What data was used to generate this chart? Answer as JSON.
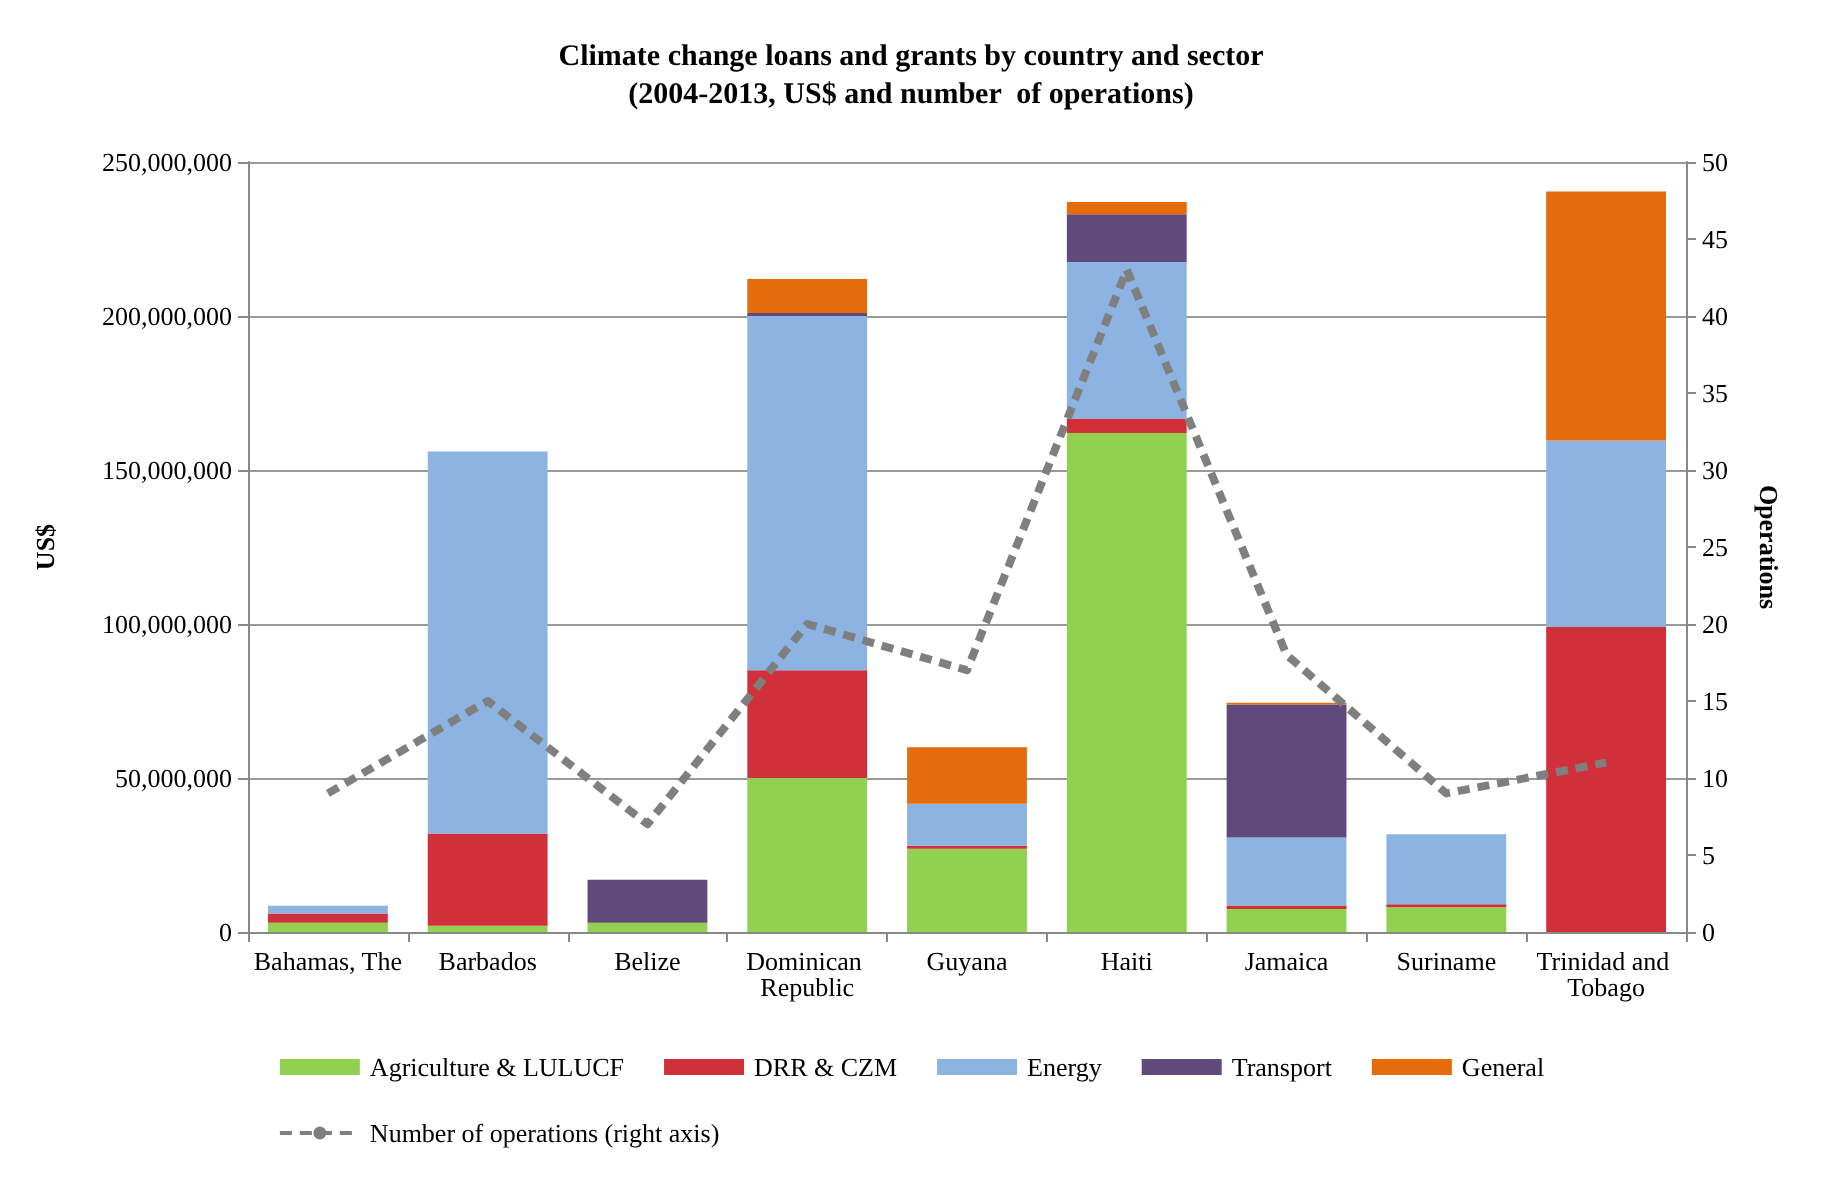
{
  "chart_data": {
    "type": "bar",
    "stacked": true,
    "title": "Climate change loans and grants by country and sector",
    "subtitle": "(2004-2013, US$ and number  of operations)",
    "ylabel": "US$",
    "y2label": "Operations",
    "categories": [
      "Bahamas, The",
      "Barbados",
      "Belize",
      "Dominican Republic",
      "Guyana",
      "Haiti",
      "Jamaica",
      "Suriname",
      "Trinidad and Tobago"
    ],
    "series": [
      {
        "name": "Agriculture & LULUCF",
        "color": "#92d050",
        "values": [
          3000000,
          2000000,
          3000000,
          50000000,
          27000000,
          162000000,
          7500000,
          8000000,
          0
        ]
      },
      {
        "name": "DRR & CZM",
        "color": "#d0303a",
        "values": [
          3000000,
          30000000,
          0,
          35000000,
          1000000,
          4700000,
          1100000,
          1000000,
          99000000
        ]
      },
      {
        "name": "Energy",
        "color": "#8db3e2",
        "values": [
          2500000,
          124000000,
          0,
          115000000,
          13600000,
          50800000,
          22100000,
          22700000,
          60600000
        ]
      },
      {
        "name": "Transport",
        "color": "#604a7b",
        "values": [
          0,
          0,
          14000000,
          1000000,
          0,
          15500000,
          43200000,
          0,
          0
        ]
      },
      {
        "name": "General",
        "color": "#e46c0a",
        "values": [
          0,
          0,
          0,
          11000000,
          18400000,
          4000000,
          500000,
          0,
          80800000
        ]
      },
      {
        "name": "Number of operations (right axis)",
        "type": "line",
        "axis": "y2",
        "color": "#7f7f7f",
        "line_style": "dashed",
        "marker": "none",
        "values": [
          9,
          15,
          7,
          20,
          17,
          43,
          18,
          9,
          11
        ]
      }
    ],
    "ylim": [
      0,
      250000000
    ],
    "yticks": [
      {
        "value": 0,
        "label": "0"
      },
      {
        "value": 50000000,
        "label": "50,000,000"
      },
      {
        "value": 100000000,
        "label": "100,000,000"
      },
      {
        "value": 150000000,
        "label": "150,000,000"
      },
      {
        "value": 200000000,
        "label": "200,000,000"
      },
      {
        "value": 250000000,
        "label": "250,000,000"
      }
    ],
    "y2lim": [
      0,
      50
    ],
    "y2ticks": [
      0,
      5,
      10,
      15,
      20,
      25,
      30,
      35,
      40,
      45,
      50
    ],
    "grid": "y",
    "legend": "bottom"
  }
}
